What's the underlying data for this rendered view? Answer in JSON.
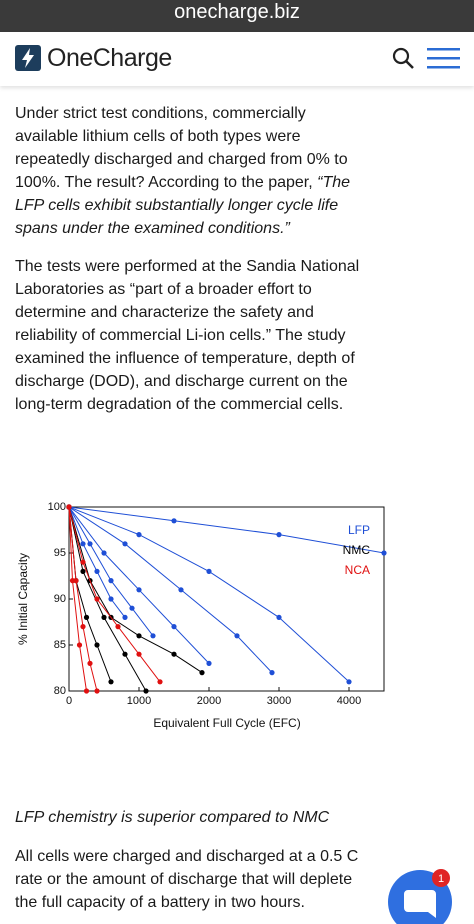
{
  "browser": {
    "url": "onecharge.biz"
  },
  "header": {
    "brand": "OneCharge"
  },
  "article": {
    "paragraph_1": {
      "text": "Under strict test conditions, commercially available lithium cells of both types were repeatedly discharged and charged from 0% to 100%. The result? According to the paper, ",
      "quote": "“The LFP cells exhibit substantially longer cycle life spans under the examined conditions.”"
    },
    "paragraph_2": "The tests were performed at the Sandia National Laboratories as “part of a broader effort to determine and characterize the safety and reliability of commercial Li-ion cells.” The study examined the influence of temperature, depth of discharge (DOD), and discharge current on the long-term degradation of the commercial cells.",
    "caption": "LFP chemistry is superior compared to NMC",
    "paragraph_3": "All cells were charged and discharged at a 0.5 C rate or the amount of discharge that will deplete the full capacity of a battery in two hours."
  },
  "chat": {
    "badge": 1
  },
  "chart_data": {
    "type": "line",
    "xlabel": "Equivalent Full Cycle (EFC)",
    "ylabel": "% Initial Capacity",
    "xlim": [
      0,
      4500
    ],
    "ylim": [
      80,
      100
    ],
    "xticks": [
      0,
      1000,
      2000,
      3000,
      4000
    ],
    "yticks": [
      80,
      85,
      90,
      95,
      100
    ],
    "legend": "upper right",
    "series": [
      {
        "name": "LFP",
        "color": "#1f4fd6",
        "cells": [
          {
            "x": [
              0,
              1500,
              3000,
              4500
            ],
            "values": [
              100,
              98.5,
              97,
              95
            ]
          },
          {
            "x": [
              0,
              1000,
              2000,
              3000,
              4000
            ],
            "values": [
              100,
              97,
              93,
              88,
              81
            ]
          },
          {
            "x": [
              0,
              800,
              1600,
              2400,
              2900
            ],
            "values": [
              100,
              96,
              91,
              86,
              82
            ]
          },
          {
            "x": [
              0,
              500,
              1000,
              1500,
              2000
            ],
            "values": [
              100,
              95,
              91,
              87,
              83
            ]
          },
          {
            "x": [
              0,
              300,
              600,
              900,
              1200
            ],
            "values": [
              100,
              96,
              92,
              89,
              86
            ]
          },
          {
            "x": [
              0,
              200,
              400,
              600,
              800
            ],
            "values": [
              100,
              96,
              93,
              90,
              88
            ]
          }
        ]
      },
      {
        "name": "NMC",
        "color": "#000000",
        "cells": [
          {
            "x": [
              0,
              200,
              500,
              800,
              1100
            ],
            "values": [
              100,
              93,
              88,
              84,
              80
            ]
          },
          {
            "x": [
              0,
              300,
              600,
              1000,
              1500,
              1900
            ],
            "values": [
              100,
              92,
              88,
              86,
              84,
              82
            ]
          },
          {
            "x": [
              0,
              100,
              250,
              400,
              600
            ],
            "values": [
              100,
              92,
              88,
              85,
              81
            ]
          }
        ]
      },
      {
        "name": "NCA",
        "color": "#e01010",
        "cells": [
          {
            "x": [
              0,
              100,
              200,
              300,
              400
            ],
            "values": [
              100,
              92,
              87,
              83,
              80
            ]
          },
          {
            "x": [
              0,
              200,
              400,
              700,
              1000,
              1300
            ],
            "values": [
              100,
              94,
              90,
              87,
              84,
              81
            ]
          },
          {
            "x": [
              0,
              50,
              150,
              250
            ],
            "values": [
              100,
              92,
              85,
              80
            ]
          }
        ]
      }
    ]
  }
}
